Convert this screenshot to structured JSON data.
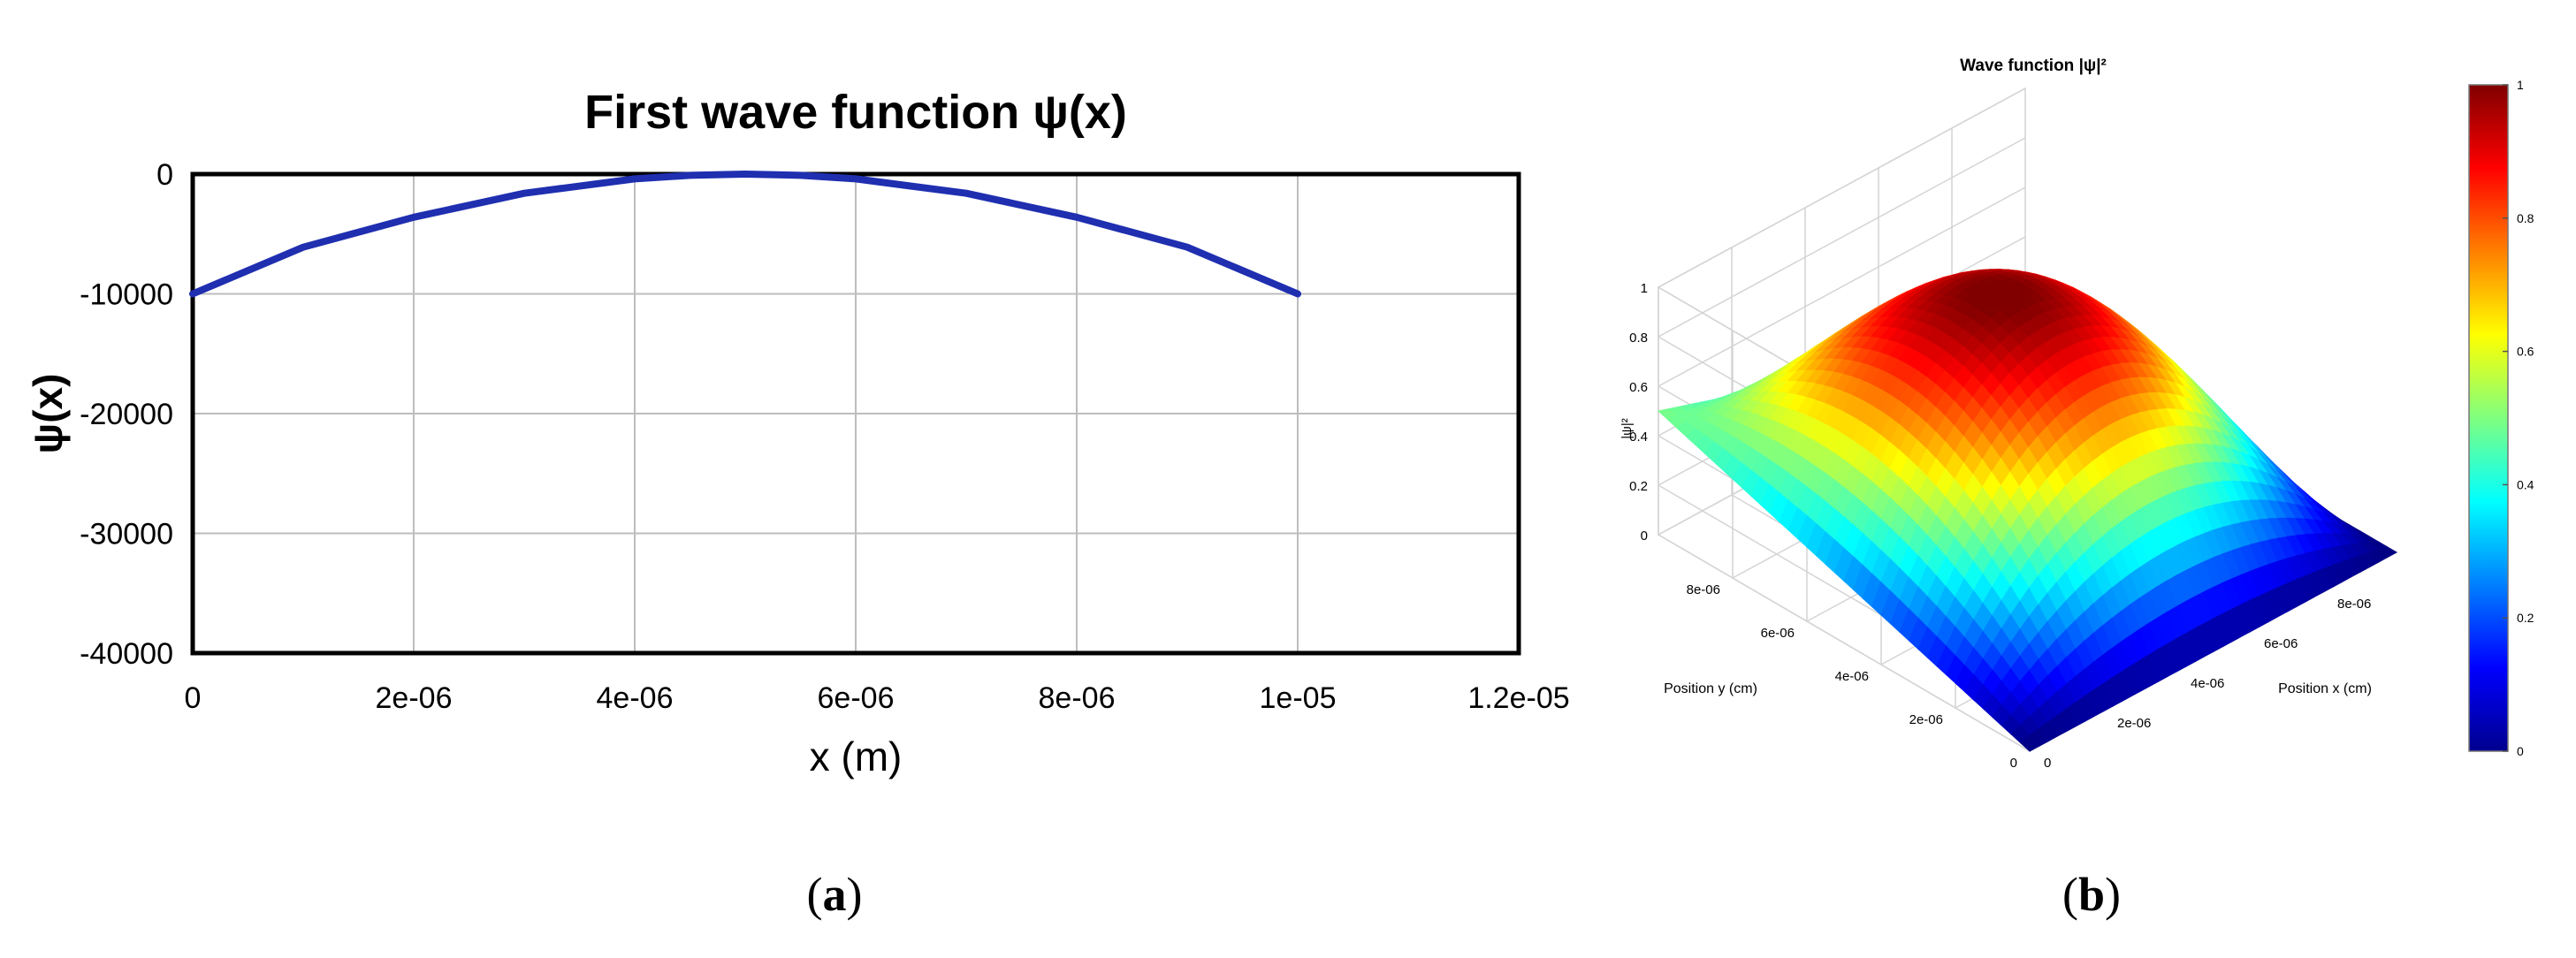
{
  "figure": {
    "panel_labels": [
      "a",
      "b"
    ]
  },
  "chart_data": [
    {
      "type": "line",
      "title": "First wave function ψ(x)",
      "xlabel": "x (m)",
      "ylabel": "ψ(x)",
      "xlim": [
        0,
        1.2e-05
      ],
      "ylim": [
        -40000,
        0
      ],
      "grid": true,
      "x_ticks": [
        "0",
        "2e-06",
        "4e-06",
        "6e-06",
        "8e-06",
        "1e-05",
        "1.2e-05"
      ],
      "y_ticks": [
        "0",
        "-10000",
        "-20000",
        "-30000",
        "-40000"
      ],
      "line_color": "#1f2fb0",
      "series": [
        {
          "x": [
            0,
            1e-06,
            2e-06,
            3e-06,
            4e-06,
            4.5e-06,
            5e-06,
            5.5e-06,
            6e-06,
            7e-06,
            8e-06,
            9e-06,
            1e-05
          ],
          "y": [
            -10000,
            -6100,
            -3600,
            -1600,
            -400,
            -100,
            0,
            -100,
            -400,
            -1600,
            -3600,
            -6100,
            -10000
          ]
        }
      ]
    },
    {
      "type": "heatmap",
      "subtype": "3d-surface",
      "title": "Wave function |ψ|²",
      "xlabel": "Position x (cm)",
      "ylabel": "Position y (cm)",
      "zlabel": "|ψ|²",
      "x_ticks": [
        "0",
        "2e-06",
        "4e-06",
        "6e-06",
        "8e-06"
      ],
      "y_ticks": [
        "0",
        "2e-06",
        "4e-06",
        "6e-06",
        "8e-06"
      ],
      "z_ticks": [
        "0",
        "0.2",
        "0.4",
        "0.6",
        "0.8",
        "1"
      ],
      "zlim": [
        0,
        1
      ],
      "colormap": "jet",
      "colorbar_ticks": [
        "0",
        "0.2",
        "0.4",
        "0.6",
        "0.8",
        "1"
      ],
      "colorbar_range": [
        0,
        1
      ],
      "corner_values": {
        "x0_y0": 0,
        "x1_y0": 0,
        "x0_y1": 0.5,
        "x1_y1": 0
      },
      "peak_value": 1
    }
  ]
}
